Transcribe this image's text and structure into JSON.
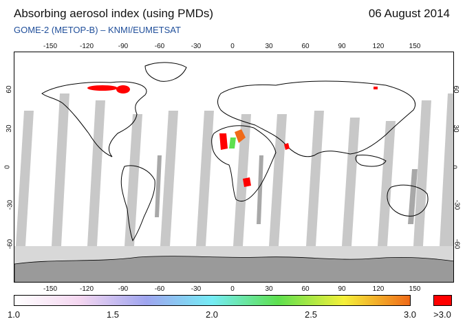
{
  "header": {
    "title": "Absorbing aerosol index (using PMDs)",
    "date": "06 August 2014",
    "subtitle": "GOME-2 (METOP-B)  –  KNMI/EUMETSAT"
  },
  "axes": {
    "lon_top": [
      "-150",
      "-120",
      "-90",
      "-60",
      "-30",
      "0",
      "30",
      "60",
      "90",
      "120",
      "150"
    ],
    "lon_bottom": [
      "-150",
      "-120",
      "-90",
      "-60",
      "-30",
      "0",
      "30",
      "60",
      "90",
      "120",
      "150"
    ],
    "lat_left": [
      "60",
      "30",
      "0",
      "-30",
      "-60"
    ],
    "lat_right": [
      "60",
      "30",
      "0",
      "-30",
      "-60"
    ]
  },
  "colorbar": {
    "labels": [
      "1.0",
      "1.5",
      "2.0",
      "2.5",
      "3.0"
    ],
    "overflow_label": ">3.0",
    "stops": [
      "#ffffff",
      "#f4d6f0",
      "#9fa5ef",
      "#75ecf5",
      "#5ee04f",
      "#f5f03a",
      "#f06a18"
    ],
    "overflow_color": "#ff0000"
  },
  "colors": {
    "swath_gap": "#c8c8c8",
    "night": "#d8d8d8",
    "antarctica": "#9a9a9a",
    "coastline": "#000000",
    "aerosol_high": "#ff0000"
  }
}
